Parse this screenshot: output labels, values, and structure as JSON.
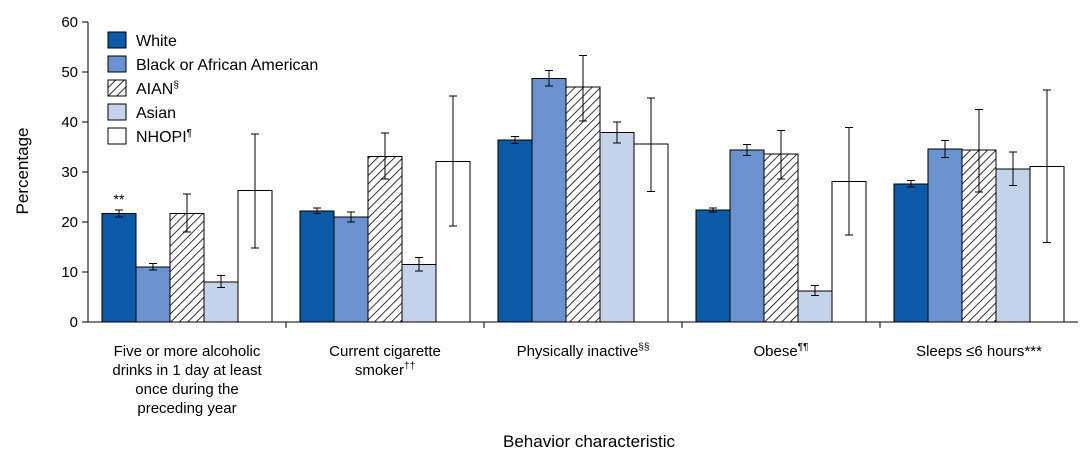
{
  "chart_data": {
    "type": "bar",
    "xlabel": "Behavior characteristic",
    "ylabel": "Percentage",
    "ylim": [
      0,
      60
    ],
    "yticks": [
      "0",
      "10",
      "20",
      "30",
      "40",
      "50",
      "60"
    ],
    "grid": false,
    "legend_position": "top-left",
    "categories": [
      {
        "lines": [
          "Five or more alcoholic",
          "drinks in 1 day at least",
          "once during the",
          "preceding year"
        ],
        "sup": ""
      },
      {
        "lines": [
          "Current cigarette",
          "smoker"
        ],
        "sup": "††"
      },
      {
        "lines": [
          "Physically inactive"
        ],
        "sup": "§§"
      },
      {
        "lines": [
          "Obese"
        ],
        "sup": "¶¶"
      },
      {
        "lines": [
          "Sleeps ≤6 hours***"
        ],
        "sup": ""
      }
    ],
    "series": [
      {
        "name": "White",
        "sup": "",
        "color": "#0a5aa8",
        "pattern": "solid",
        "values": [
          21.7,
          22.2,
          36.4,
          22.4,
          27.6
        ],
        "ci_low": [
          21.0,
          21.7,
          35.7,
          22.0,
          27.0
        ],
        "ci_high": [
          22.4,
          22.8,
          37.1,
          22.8,
          28.3
        ]
      },
      {
        "name": "Black or African American",
        "sup": "",
        "color": "#6a92cf",
        "pattern": "solid",
        "values": [
          11.0,
          21.0,
          48.7,
          34.4,
          34.6
        ],
        "ci_low": [
          10.4,
          20.0,
          47.2,
          33.3,
          32.9
        ],
        "ci_high": [
          11.7,
          22.0,
          50.3,
          35.5,
          36.3
        ]
      },
      {
        "name": "AIAN",
        "sup": "§",
        "color": "#ffffff",
        "pattern": "hatch",
        "values": [
          21.7,
          33.1,
          47.0,
          33.6,
          34.4
        ],
        "ci_low": [
          18.0,
          28.6,
          40.2,
          28.6,
          26.0
        ],
        "ci_high": [
          25.6,
          37.8,
          53.3,
          38.3,
          42.5
        ]
      },
      {
        "name": "Asian",
        "sup": "",
        "color": "#c4d2ea",
        "pattern": "solid",
        "values": [
          8.0,
          11.5,
          37.9,
          6.2,
          30.6
        ],
        "ci_low": [
          6.9,
          10.2,
          35.8,
          5.3,
          27.3
        ],
        "ci_high": [
          9.3,
          12.9,
          40.0,
          7.3,
          34.0
        ]
      },
      {
        "name": "NHOPI",
        "sup": "¶",
        "color": "#ffffff",
        "pattern": "solid",
        "values": [
          26.3,
          32.1,
          35.6,
          28.1,
          31.1
        ],
        "ci_low": [
          14.8,
          19.2,
          26.1,
          17.4,
          15.9
        ],
        "ci_high": [
          37.6,
          45.2,
          44.8,
          38.9,
          46.4
        ]
      }
    ],
    "annotations": [
      {
        "text": "**",
        "category": 0,
        "series": 0
      }
    ]
  }
}
